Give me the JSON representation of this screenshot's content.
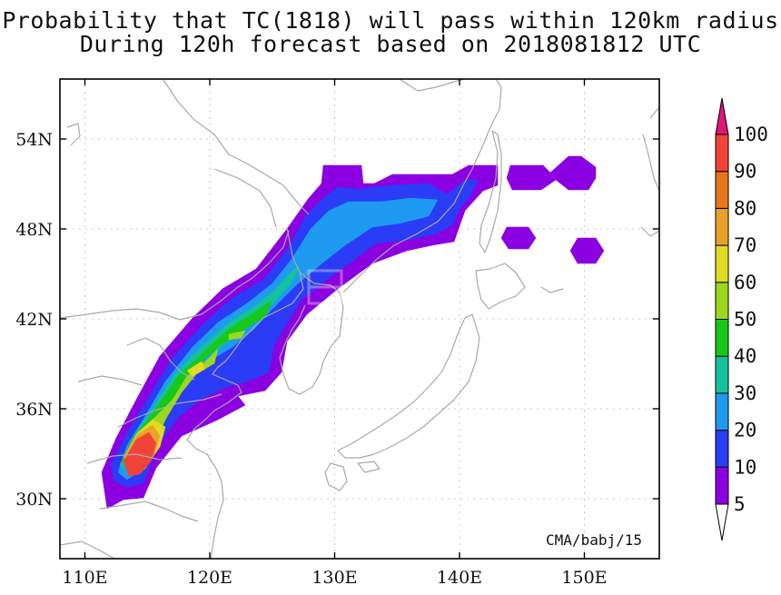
{
  "title": {
    "line1": "Probability that TC(1818) will pass within 120km radius",
    "line2": "During 120h forecast based on 2018081812 UTC"
  },
  "map": {
    "lon_range": [
      108,
      156
    ],
    "lat_range": [
      26,
      58
    ],
    "lon_ticks": [
      {
        "value": 110,
        "label": "110E"
      },
      {
        "value": 120,
        "label": "120E"
      },
      {
        "value": 130,
        "label": "130E"
      },
      {
        "value": 140,
        "label": "140E"
      },
      {
        "value": 150,
        "label": "150E"
      }
    ],
    "lat_ticks": [
      {
        "value": 30,
        "label": "30N"
      },
      {
        "value": 36,
        "label": "36N"
      },
      {
        "value": 42,
        "label": "42N"
      },
      {
        "value": 48,
        "label": "48N"
      },
      {
        "value": 54,
        "label": "54N"
      }
    ],
    "credit": "CMA/babj/15"
  },
  "colorbar": {
    "levels": [
      "5",
      "10",
      "20",
      "30",
      "40",
      "50",
      "60",
      "70",
      "80",
      "90",
      "100"
    ],
    "colors": [
      "#8B00E0",
      "#2A3CF5",
      "#1E9BF0",
      "#12C39A",
      "#18C818",
      "#9BD81E",
      "#E2DA22",
      "#E8A22A",
      "#E8761C",
      "#F04438"
    ],
    "top_triangle_color": "#E0157A",
    "bottom_triangle_color": "#ffffff"
  },
  "probability_field": {
    "band_colors": {
      "p5": "#8B00E0",
      "p10": "#2A3CF5",
      "p20": "#1E9BF0",
      "p30": "#12C39A",
      "p40": "#18C818",
      "p50": "#9BD81E",
      "p60": "#E2DA22",
      "p70": "#E8A22A",
      "p90": "#F04438"
    }
  },
  "colors": {
    "coast": "#a9a9a9",
    "grid": "#c8c8c8",
    "frame": "#000000"
  }
}
